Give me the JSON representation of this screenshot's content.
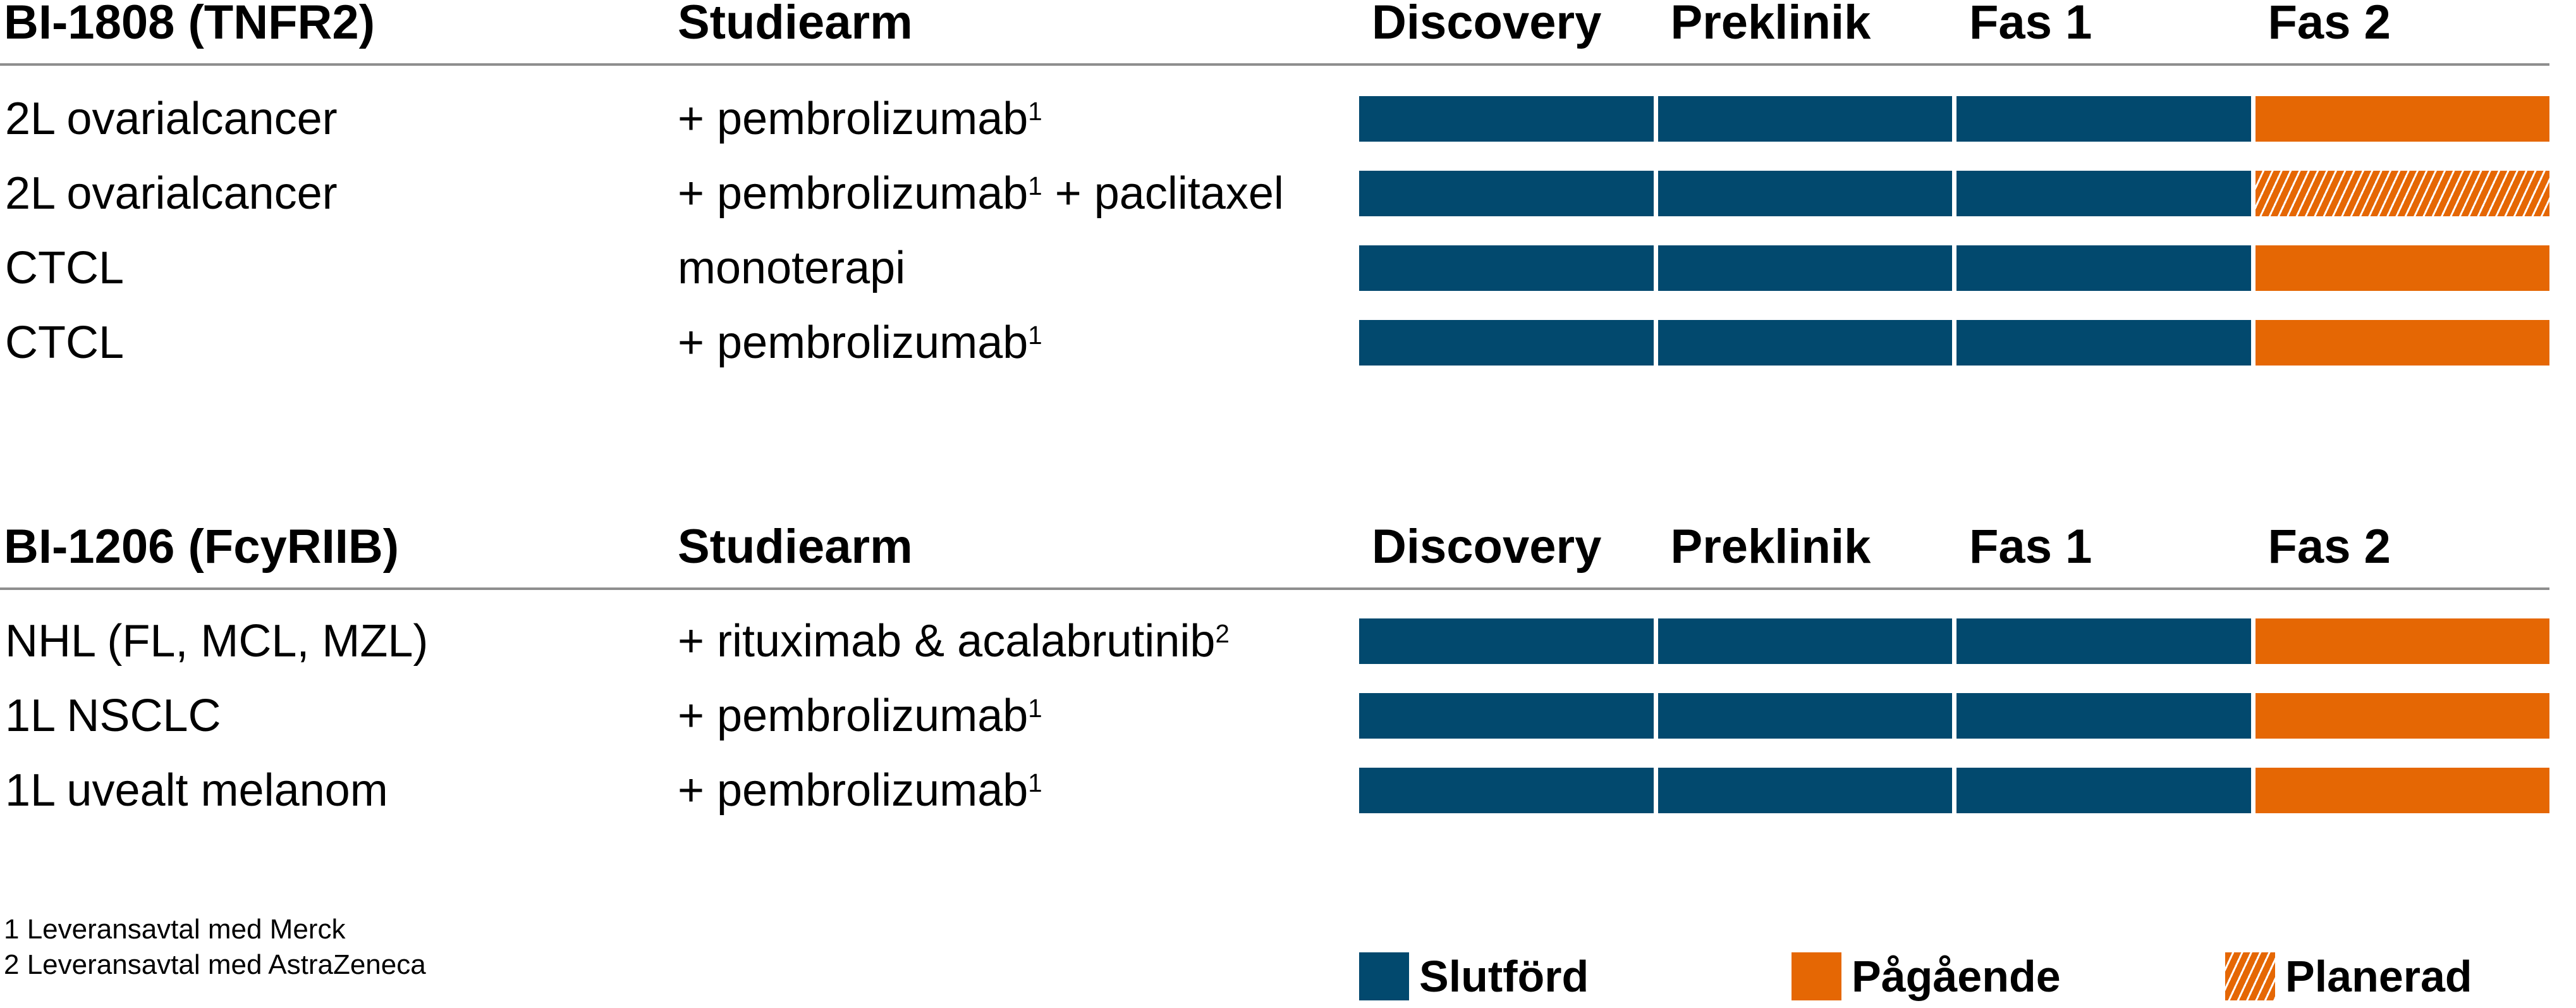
{
  "colors": {
    "completed_blue": "#02496E",
    "ongoing_orange": "#E56704",
    "planned_stripe_white": "#FFFFFF",
    "header_rule_gray": "#8E8E8E",
    "text_black": "#000000"
  },
  "sections": [
    {
      "program": "BI-1808 (TNFR2)",
      "arm_header": "Studiearm",
      "phases": [
        "Discovery",
        "Preklinik",
        "Fas 1",
        "Fas 2"
      ],
      "rows": [
        {
          "indication": "2L ovarialcancer",
          "arm": [
            {
              "text": "+ pembrolizumab"
            },
            {
              "sup": "1"
            }
          ],
          "segments": [
            "completed",
            "completed",
            "completed",
            "ongoing"
          ]
        },
        {
          "indication": "2L ovarialcancer",
          "arm": [
            {
              "text": "+ pembrolizumab"
            },
            {
              "sup": "1"
            },
            {
              "text": " + paclitaxel"
            }
          ],
          "segments": [
            "completed",
            "completed",
            "completed",
            "planned"
          ]
        },
        {
          "indication": "CTCL",
          "arm": [
            {
              "text": "monoterapi"
            }
          ],
          "segments": [
            "completed",
            "completed",
            "completed",
            "ongoing"
          ]
        },
        {
          "indication": "CTCL",
          "arm": [
            {
              "text": "+ pembrolizumab"
            },
            {
              "sup": "1"
            }
          ],
          "segments": [
            "completed",
            "completed",
            "completed",
            "ongoing"
          ]
        }
      ]
    },
    {
      "program": "BI-1206 (FcyRIIB)",
      "arm_header": "Studiearm",
      "phases": [
        "Discovery",
        "Preklinik",
        "Fas 1",
        "Fas 2"
      ],
      "rows": [
        {
          "indication": "NHL (FL, MCL, MZL)",
          "arm": [
            {
              "text": "+ rituximab & acalabrutinib"
            },
            {
              "sup": "2"
            }
          ],
          "segments": [
            "completed",
            "completed",
            "completed",
            "ongoing"
          ]
        },
        {
          "indication": "1L NSCLC",
          "arm": [
            {
              "text": "+ pembrolizumab"
            },
            {
              "sup": "1"
            }
          ],
          "segments": [
            "completed",
            "completed",
            "completed",
            "ongoing"
          ]
        },
        {
          "indication": "1L uvealt melanom",
          "arm": [
            {
              "text": "+ pembrolizumab"
            },
            {
              "sup": "1"
            }
          ],
          "segments": [
            "completed",
            "completed",
            "completed",
            "ongoing"
          ]
        }
      ]
    }
  ],
  "footnotes": [
    "1 Leveransavtal med Merck",
    "2 Leveransavtal med AstraZeneca"
  ],
  "legend": [
    {
      "label": "Slutförd",
      "status": "completed"
    },
    {
      "label": "Pågående",
      "status": "ongoing"
    },
    {
      "label": "Planerad",
      "status": "planned"
    }
  ],
  "chart_data": {
    "type": "table",
    "phase_columns": [
      "Discovery",
      "Preklinik",
      "Fas 1",
      "Fas 2"
    ],
    "status_legend": {
      "completed": "Slutförd",
      "ongoing": "Pågående",
      "planned": "Planerad"
    },
    "programs": [
      {
        "name": "BI-1808 (TNFR2)",
        "rows": [
          {
            "indication": "2L ovarialcancer",
            "studiearm": "+ pembrolizumab[1]",
            "Discovery": "completed",
            "Preklinik": "completed",
            "Fas 1": "completed",
            "Fas 2": "ongoing"
          },
          {
            "indication": "2L ovarialcancer",
            "studiearm": "+ pembrolizumab[1] + paclitaxel",
            "Discovery": "completed",
            "Preklinik": "completed",
            "Fas 1": "completed",
            "Fas 2": "planned"
          },
          {
            "indication": "CTCL",
            "studiearm": "monoterapi",
            "Discovery": "completed",
            "Preklinik": "completed",
            "Fas 1": "completed",
            "Fas 2": "ongoing"
          },
          {
            "indication": "CTCL",
            "studiearm": "+ pembrolizumab[1]",
            "Discovery": "completed",
            "Preklinik": "completed",
            "Fas 1": "completed",
            "Fas 2": "ongoing"
          }
        ]
      },
      {
        "name": "BI-1206 (FcyRIIB)",
        "rows": [
          {
            "indication": "NHL (FL, MCL, MZL)",
            "studiearm": "+ rituximab & acalabrutinib[2]",
            "Discovery": "completed",
            "Preklinik": "completed",
            "Fas 1": "completed",
            "Fas 2": "ongoing"
          },
          {
            "indication": "1L NSCLC",
            "studiearm": "+ pembrolizumab[1]",
            "Discovery": "completed",
            "Preklinik": "completed",
            "Fas 1": "completed",
            "Fas 2": "ongoing"
          },
          {
            "indication": "1L uvealt melanom",
            "studiearm": "+ pembrolizumab[1]",
            "Discovery": "completed",
            "Preklinik": "completed",
            "Fas 1": "completed",
            "Fas 2": "ongoing"
          }
        ]
      }
    ]
  }
}
